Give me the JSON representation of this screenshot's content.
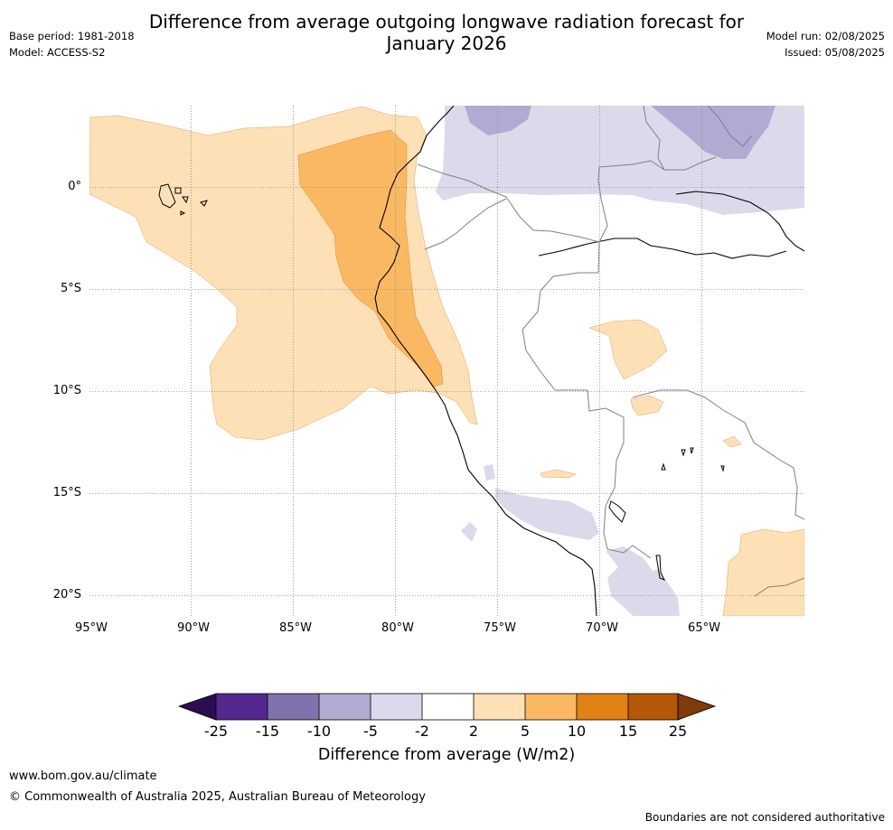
{
  "title": "Difference from average outgoing longwave radiation forecast for January 2026",
  "title_line1": "Difference from average outgoing longwave radiation forecast for",
  "title_line2": "January 2026",
  "meta": {
    "base_period": "Base period: 1981-2018",
    "model": "Model: ACCESS-S2",
    "model_run": "Model run: 02/08/2025",
    "issued": "Issued: 05/08/2025"
  },
  "map": {
    "lon_ticks": [
      "95°W",
      "90°W",
      "85°W",
      "80°W",
      "75°W",
      "70°W",
      "65°W"
    ],
    "lat_ticks": [
      "0°",
      "5°S",
      "10°S",
      "15°S",
      "20°S"
    ],
    "gridlines": true
  },
  "colorbar": {
    "label": "Difference from average (W/m2)",
    "ticks": [
      "-25",
      "-15",
      "-10",
      "-5",
      "-2",
      "2",
      "5",
      "10",
      "15",
      "25"
    ],
    "colors": [
      "#2d0c52",
      "#54278f",
      "#8072ad",
      "#b1aad2",
      "#dadaeb",
      "#ffffff",
      "#fee0b6",
      "#fbb863",
      "#e08214",
      "#b35806",
      "#7f3b08"
    ]
  },
  "footer": {
    "website": "www.bom.gov.au/climate",
    "copyright": "© Commonwealth of Australia 2025, Australian Bureau of Meteorology",
    "disclaimer": "Boundaries are not considered authoritative"
  }
}
